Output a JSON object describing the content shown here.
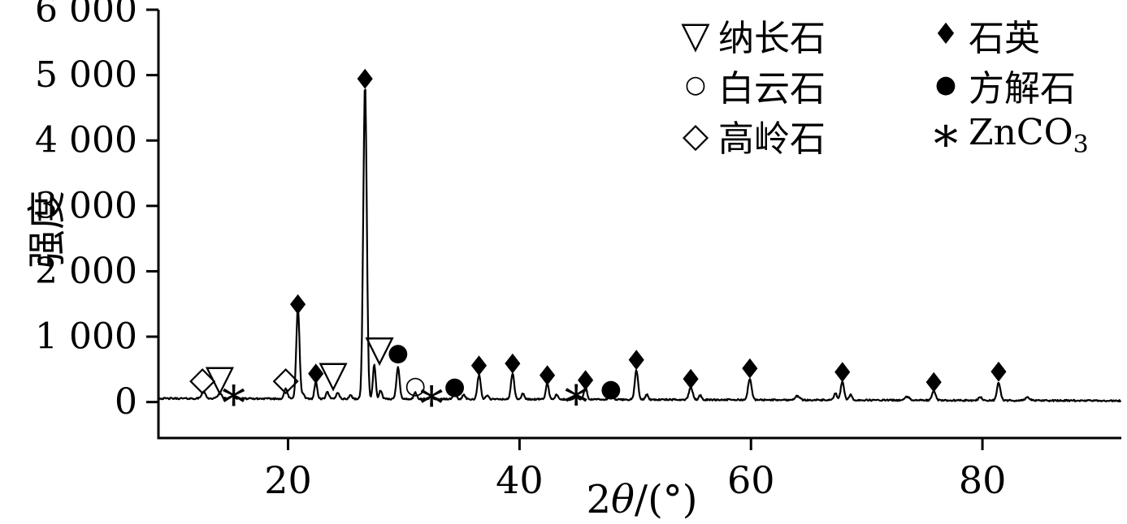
{
  "page": {
    "background": "#ffffff"
  },
  "axes": {
    "ylabel": "强度",
    "xlabel": "2θ/(°)",
    "xlabel_parts": {
      "num": "2",
      "theta": "θ",
      "rest": "/(°)"
    }
  },
  "legend": {
    "position": "top-right",
    "items": [
      {
        "symbol": "▽",
        "mineral": "albite",
        "label_main": "纳长石",
        "label_sub": ""
      },
      {
        "symbol": "○",
        "mineral": "dolomite",
        "label_main": "白云石",
        "label_sub": ""
      },
      {
        "symbol": "◇",
        "mineral": "kaolinite",
        "label_main": "高岭石",
        "label_sub": ""
      },
      {
        "symbol": "♦",
        "mineral": "quartz",
        "label_main": "石英",
        "label_sub": ""
      },
      {
        "symbol": "●",
        "mineral": "calcite",
        "label_main": "方解石",
        "label_sub": ""
      },
      {
        "symbol": "*",
        "mineral": "zinc-carbonate",
        "label_main": "ZnCO",
        "label_sub": "3"
      }
    ]
  },
  "chart_data": {
    "type": "line",
    "title": "",
    "xlabel": "2θ/(°)",
    "ylabel": "强度",
    "line_color": "#000000",
    "grid": false,
    "legend_position": "top-right",
    "xlim": [
      8.8,
      92
    ],
    "ylim": [
      -550,
      6000
    ],
    "xticks": [
      {
        "value": 20,
        "label": "20"
      },
      {
        "value": 40,
        "label": "40"
      },
      {
        "value": 60,
        "label": "60"
      },
      {
        "value": 80,
        "label": "80"
      }
    ],
    "yticks": [
      {
        "value": 0,
        "label": "0"
      },
      {
        "value": 1000,
        "label": "1 000"
      },
      {
        "value": 2000,
        "label": "2 000"
      },
      {
        "value": 3000,
        "label": "3 000"
      },
      {
        "value": 4000,
        "label": "4 000"
      },
      {
        "value": 5000,
        "label": "5 000"
      },
      {
        "value": 6000,
        "label": "6 000"
      }
    ],
    "baseline": {
      "start": 55,
      "end": 20,
      "noise": 12
    },
    "peaks": [
      {
        "two_theta": 12.7,
        "intensity": 100,
        "sigma": 0.18
      },
      {
        "two_theta": 14.1,
        "intensity": 80,
        "sigma": 0.18
      },
      {
        "two_theta": 15.2,
        "intensity": 45,
        "sigma": 0.15
      },
      {
        "two_theta": 19.8,
        "intensity": 150,
        "sigma": 0.15
      },
      {
        "two_theta": 20.85,
        "intensity": 1390,
        "sigma": 0.14
      },
      {
        "two_theta": 21.3,
        "intensity": 70,
        "sigma": 0.12
      },
      {
        "two_theta": 22.4,
        "intensity": 260,
        "sigma": 0.12
      },
      {
        "two_theta": 23.4,
        "intensity": 100,
        "sigma": 0.13
      },
      {
        "two_theta": 24.3,
        "intensity": 100,
        "sigma": 0.13
      },
      {
        "two_theta": 25.4,
        "intensity": 60,
        "sigma": 0.12
      },
      {
        "two_theta": 26.65,
        "intensity": 4820,
        "sigma": 0.15
      },
      {
        "two_theta": 27.45,
        "intensity": 520,
        "sigma": 0.12
      },
      {
        "two_theta": 28.0,
        "intensity": 130,
        "sigma": 0.12
      },
      {
        "two_theta": 29.5,
        "intensity": 490,
        "sigma": 0.14
      },
      {
        "two_theta": 31.0,
        "intensity": 100,
        "sigma": 0.12
      },
      {
        "two_theta": 32.4,
        "intensity": 60,
        "sigma": 0.12
      },
      {
        "two_theta": 34.4,
        "intensity": 120,
        "sigma": 0.13
      },
      {
        "two_theta": 35.2,
        "intensity": 70,
        "sigma": 0.12
      },
      {
        "two_theta": 36.5,
        "intensity": 370,
        "sigma": 0.14
      },
      {
        "two_theta": 37.2,
        "intensity": 60,
        "sigma": 0.12
      },
      {
        "two_theta": 39.4,
        "intensity": 400,
        "sigma": 0.14
      },
      {
        "two_theta": 40.3,
        "intensity": 90,
        "sigma": 0.12
      },
      {
        "two_theta": 42.4,
        "intensity": 240,
        "sigma": 0.13
      },
      {
        "two_theta": 43.2,
        "intensity": 70,
        "sigma": 0.12
      },
      {
        "two_theta": 44.9,
        "intensity": 70,
        "sigma": 0.12
      },
      {
        "two_theta": 45.7,
        "intensity": 200,
        "sigma": 0.13
      },
      {
        "two_theta": 47.9,
        "intensity": 110,
        "sigma": 0.13
      },
      {
        "two_theta": 50.1,
        "intensity": 450,
        "sigma": 0.14
      },
      {
        "two_theta": 51.0,
        "intensity": 80,
        "sigma": 0.12
      },
      {
        "two_theta": 54.8,
        "intensity": 190,
        "sigma": 0.16
      },
      {
        "two_theta": 55.6,
        "intensity": 70,
        "sigma": 0.12
      },
      {
        "two_theta": 59.9,
        "intensity": 330,
        "sigma": 0.15
      },
      {
        "two_theta": 64.0,
        "intensity": 60,
        "sigma": 0.2
      },
      {
        "two_theta": 67.3,
        "intensity": 100,
        "sigma": 0.13
      },
      {
        "two_theta": 67.9,
        "intensity": 290,
        "sigma": 0.14
      },
      {
        "two_theta": 68.6,
        "intensity": 80,
        "sigma": 0.12
      },
      {
        "two_theta": 73.5,
        "intensity": 50,
        "sigma": 0.2
      },
      {
        "two_theta": 75.8,
        "intensity": 140,
        "sigma": 0.15
      },
      {
        "two_theta": 79.8,
        "intensity": 50,
        "sigma": 0.15
      },
      {
        "two_theta": 81.4,
        "intensity": 270,
        "sigma": 0.15
      },
      {
        "two_theta": 83.9,
        "intensity": 50,
        "sigma": 0.2
      }
    ],
    "markers": [
      {
        "symbol": "◇",
        "mineral": "kaolinite",
        "two_theta": 12.6,
        "intensity": 360
      },
      {
        "symbol": "▽",
        "mineral": "albite",
        "two_theta": 14.1,
        "intensity": 370
      },
      {
        "symbol": "*",
        "mineral": "ZnCO3",
        "two_theta": 15.3,
        "intensity": 180
      },
      {
        "symbol": "◇",
        "mineral": "kaolinite",
        "two_theta": 19.8,
        "intensity": 360
      },
      {
        "symbol": "♦",
        "mineral": "quartz",
        "two_theta": 20.85,
        "intensity": 1480
      },
      {
        "symbol": "♦",
        "mineral": "quartz",
        "two_theta": 22.4,
        "intensity": 420
      },
      {
        "symbol": "▽",
        "mineral": "albite",
        "two_theta": 23.9,
        "intensity": 430
      },
      {
        "symbol": "♦",
        "mineral": "quartz",
        "two_theta": 26.65,
        "intensity": 4930
      },
      {
        "symbol": "▽",
        "mineral": "albite",
        "two_theta": 27.9,
        "intensity": 820
      },
      {
        "symbol": "●",
        "mineral": "calcite",
        "two_theta": 29.5,
        "intensity": 750
      },
      {
        "symbol": "○",
        "mineral": "dolomite",
        "two_theta": 31.0,
        "intensity": 250
      },
      {
        "symbol": "*",
        "mineral": "ZnCO3",
        "two_theta": 32.4,
        "intensity": 170
      },
      {
        "symbol": "●",
        "mineral": "calcite",
        "two_theta": 34.4,
        "intensity": 240
      },
      {
        "symbol": "♦",
        "mineral": "quartz",
        "two_theta": 36.5,
        "intensity": 540
      },
      {
        "symbol": "♦",
        "mineral": "quartz",
        "two_theta": 39.4,
        "intensity": 570
      },
      {
        "symbol": "♦",
        "mineral": "quartz",
        "two_theta": 42.4,
        "intensity": 390
      },
      {
        "symbol": "*",
        "mineral": "ZnCO3",
        "two_theta": 44.9,
        "intensity": 190
      },
      {
        "symbol": "♦",
        "mineral": "quartz",
        "two_theta": 45.7,
        "intensity": 320
      },
      {
        "symbol": "●",
        "mineral": "calcite",
        "two_theta": 47.9,
        "intensity": 200
      },
      {
        "symbol": "♦",
        "mineral": "quartz",
        "two_theta": 50.1,
        "intensity": 630
      },
      {
        "symbol": "♦",
        "mineral": "quartz",
        "two_theta": 54.8,
        "intensity": 340
      },
      {
        "symbol": "♦",
        "mineral": "quartz",
        "two_theta": 59.9,
        "intensity": 500
      },
      {
        "symbol": "♦",
        "mineral": "quartz",
        "two_theta": 67.9,
        "intensity": 440
      },
      {
        "symbol": "♦",
        "mineral": "quartz",
        "two_theta": 75.8,
        "intensity": 290
      },
      {
        "symbol": "♦",
        "mineral": "quartz",
        "two_theta": 81.4,
        "intensity": 450
      }
    ]
  }
}
